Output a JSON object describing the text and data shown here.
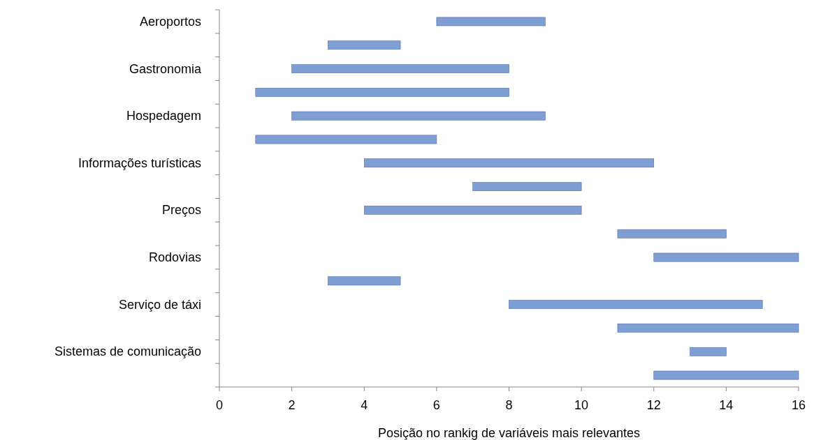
{
  "chart_data": {
    "type": "bar",
    "orientation": "horizontal",
    "categories": [
      "Aeroportos",
      null,
      "Gastronomia",
      null,
      "Hospedagem",
      null,
      "Informações turísticas",
      null,
      "Preços",
      null,
      "Rodovias",
      null,
      "Serviço de táxi",
      null,
      "Sistemas de comunicação",
      null
    ],
    "base": [
      6,
      3,
      2,
      1,
      2,
      1,
      4,
      7,
      4,
      11,
      12,
      3,
      8,
      11,
      13,
      12
    ],
    "values": [
      3,
      2,
      6,
      7,
      7,
      5,
      8,
      3,
      6,
      3,
      4,
      2,
      7,
      5,
      1,
      4
    ],
    "color": "#7f9ed3",
    "xlabel": "Posição no rankig de variáveis mais relevantes",
    "xlim": [
      0,
      16
    ],
    "xticks": [
      0,
      2,
      4,
      6,
      8,
      10,
      12,
      14,
      16
    ],
    "grid": false
  }
}
